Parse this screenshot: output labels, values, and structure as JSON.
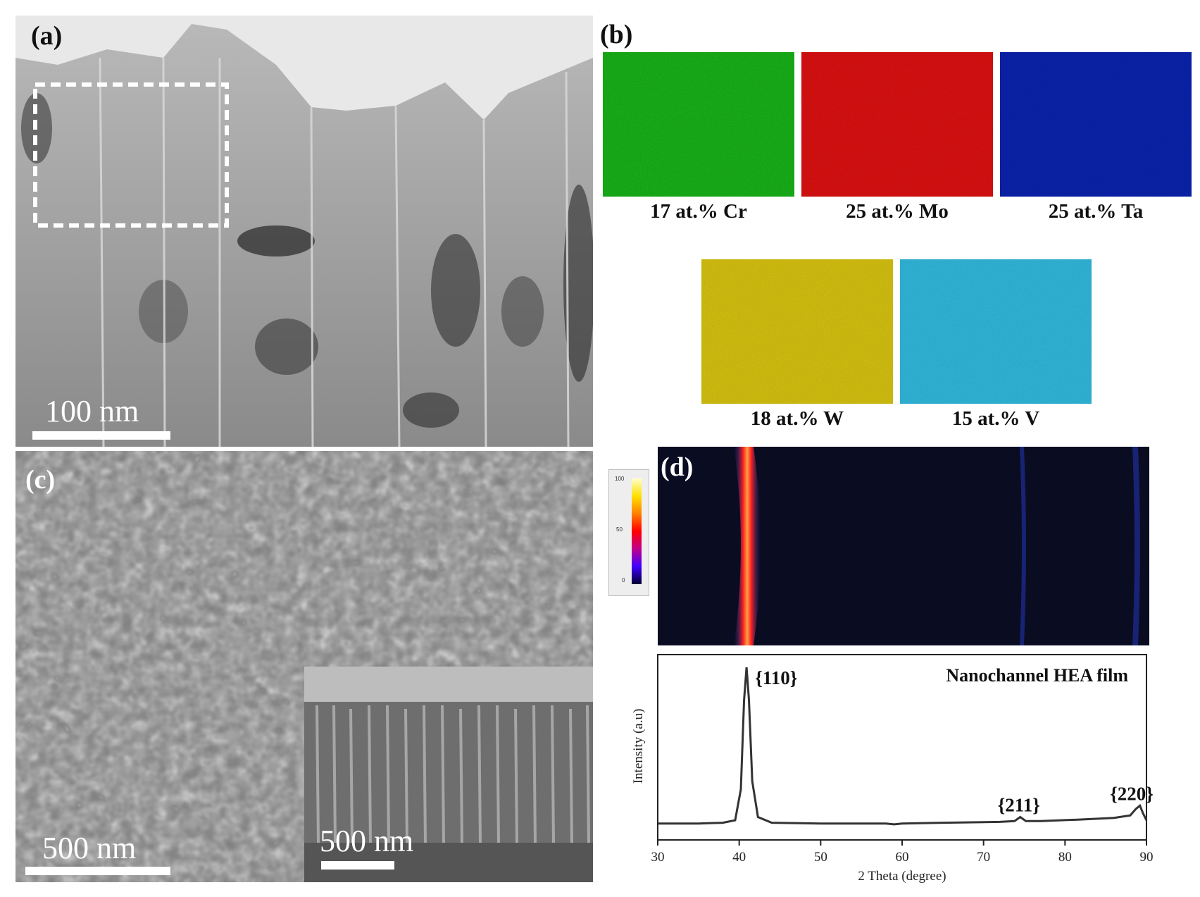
{
  "panels": {
    "a": {
      "label": "(a)",
      "scale_bar": "100 nm"
    },
    "b": {
      "label": "(b)",
      "maps": [
        {
          "label": "17 at.% Cr",
          "color": "#1f9a1f"
        },
        {
          "label": "25 at.% Mo",
          "color": "#d01616"
        },
        {
          "label": "25 at.% Ta",
          "color": "#0c1a9a"
        },
        {
          "label": "18 at.% W",
          "color": "#c9b414"
        },
        {
          "label": "15 at.% V",
          "color": "#2aa6cc"
        }
      ]
    },
    "c": {
      "label": "(c)",
      "scale_bar": "500 nm",
      "inset_scale_bar": "500 nm"
    },
    "d": {
      "label": "(d)",
      "colorbar_ticks": [
        "100",
        "50",
        "0"
      ]
    }
  },
  "chart_data": {
    "type": "line",
    "xlabel": "2 Theta (degree)",
    "ylabel": "Intensity (a.u)",
    "xlim": [
      30,
      90
    ],
    "xticks": [
      30,
      40,
      50,
      60,
      70,
      80,
      90
    ],
    "series": [
      {
        "name": "Nanochannel HEA film",
        "x": [
          30,
          35,
          38,
          39.5,
          40.2,
          40.6,
          40.9,
          41.2,
          41.6,
          42.3,
          44,
          50,
          58,
          59,
          60,
          65,
          72,
          73.8,
          74.5,
          75.2,
          77,
          82,
          86,
          88,
          88.7,
          89.2,
          89.6,
          90
        ],
        "y": [
          0.04,
          0.04,
          0.045,
          0.06,
          0.25,
          0.8,
          1.0,
          0.8,
          0.3,
          0.08,
          0.045,
          0.04,
          0.04,
          0.035,
          0.04,
          0.045,
          0.05,
          0.055,
          0.08,
          0.055,
          0.055,
          0.065,
          0.075,
          0.09,
          0.13,
          0.15,
          0.1,
          0.06
        ]
      }
    ],
    "annotations": [
      {
        "text": "{110}",
        "x": 40.9
      },
      {
        "text": "{211}",
        "x": 74.5
      },
      {
        "text": "{220}",
        "x": 88.7
      }
    ]
  }
}
